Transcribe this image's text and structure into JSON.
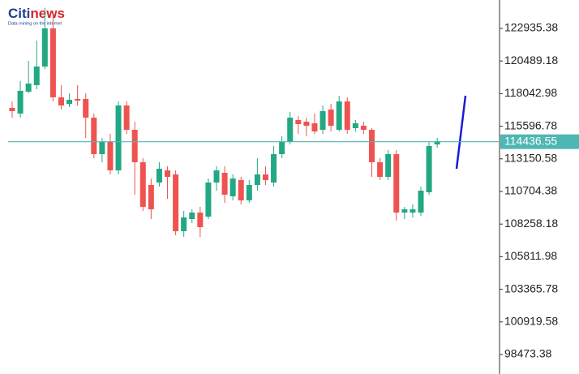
{
  "logo": {
    "main": "Citi",
    "accent": "news",
    "tagline": "Data mining on the internet"
  },
  "chart_data": {
    "type": "candlestick",
    "up_color": "#22a884",
    "down_color": "#ef5350",
    "open": [
      116972,
      116546,
      118189,
      118676,
      120075,
      122935,
      117763,
      117276,
      117641,
      117641,
      116242,
      113503,
      114416,
      112286,
      117154,
      115329,
      112895,
      111191,
      111374,
      112286,
      111982,
      107722,
      108635,
      109122,
      108818,
      111374,
      112104,
      110339,
      111556,
      110035,
      111191,
      111982,
      111374,
      113503,
      114416,
      116059,
      115937,
      115815,
      115329,
      116850,
      115329,
      117459,
      115450,
      115633,
      115329,
      112895,
      111799,
      113503,
      109122,
      109122,
      109122,
      110643,
      114233
    ],
    "high": [
      117459,
      118980,
      120501,
      122022,
      124456,
      123848,
      118676,
      118067,
      118676,
      118067,
      116546,
      114720,
      115024,
      117459,
      117459,
      115937,
      113199,
      111678,
      112895,
      112590,
      112286,
      109244,
      109366,
      109548,
      111678,
      112590,
      112590,
      111982,
      111799,
      111556,
      113199,
      112590,
      114112,
      114842,
      116667,
      116363,
      116242,
      116546,
      117154,
      117276,
      117885,
      117763,
      116059,
      115937,
      115450,
      113199,
      113807,
      113807,
      109548,
      109731,
      111069,
      114416,
      114720
    ],
    "low": [
      116242,
      116242,
      118067,
      118371,
      119893,
      117459,
      116850,
      117033,
      117154,
      114720,
      113199,
      112895,
      111982,
      111982,
      115024,
      110461,
      109244,
      108635,
      111069,
      110157,
      107418,
      107296,
      108331,
      107296,
      108635,
      110765,
      109852,
      110035,
      109731,
      109852,
      110765,
      111191,
      111069,
      113199,
      114233,
      115024,
      114842,
      115024,
      115024,
      115207,
      115207,
      115024,
      115207,
      115024,
      111799,
      111556,
      111556,
      108514,
      108635,
      108757,
      108879,
      110461,
      113990
    ],
    "close": [
      116728,
      118250,
      118797,
      120075,
      122935,
      117763,
      117154,
      117580,
      117520,
      116242,
      113503,
      114416,
      112286,
      117154,
      115329,
      112895,
      109548,
      109366,
      112408,
      111799,
      107722,
      108757,
      109122,
      108027,
      111374,
      112286,
      110461,
      111678,
      110035,
      111191,
      111982,
      111556,
      113503,
      114416,
      116242,
      115755,
      115633,
      115207,
      116728,
      115633,
      117459,
      115329,
      115815,
      115329,
      112895,
      111799,
      113503,
      109122,
      109366,
      109366,
      110765,
      114112,
      114477
    ],
    "projection": {
      "color": "#1a1ad6",
      "values": [
        112408,
        117885
      ]
    },
    "price_line": 114436.55,
    "price_line_color": "#4fb7b3",
    "ylim": [
      97013,
      125065
    ],
    "yticks": [
      122935.38,
      120489.18,
      118042.98,
      115596.78,
      113150.58,
      110704.38,
      108258.18,
      105811.98,
      103365.78,
      100919.58,
      98473.38
    ]
  }
}
